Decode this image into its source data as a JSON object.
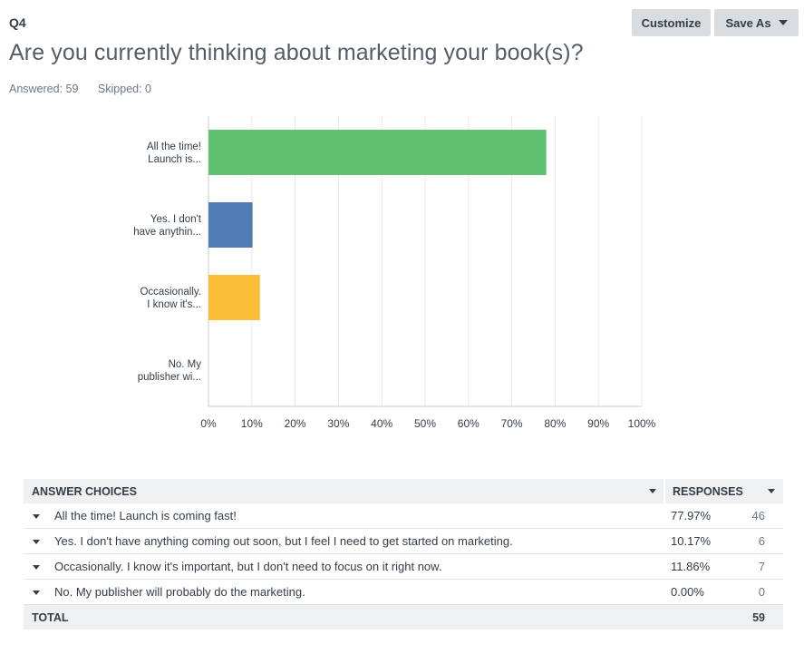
{
  "question": {
    "number": "Q4",
    "title": "Are you currently thinking about marketing your book(s)?",
    "answered": "Answered: 59",
    "skipped": "Skipped: 0"
  },
  "toolbar": {
    "customize_label": "Customize",
    "saveas_label": "Save As"
  },
  "chart_data": {
    "type": "bar",
    "orientation": "horizontal",
    "categories": [
      [
        "All the time!",
        "Launch is..."
      ],
      [
        "Yes. I don't",
        "have anythin..."
      ],
      [
        "Occasionally.",
        "I know it's..."
      ],
      [
        "No. My",
        "publisher wi..."
      ]
    ],
    "values": [
      77.97,
      10.17,
      11.86,
      0.0
    ],
    "colors": [
      "#62c171",
      "#507cb6",
      "#f9be35",
      "#9d8cd1"
    ],
    "xlim": [
      0,
      100
    ],
    "xticks": [
      "0%",
      "10%",
      "20%",
      "30%",
      "40%",
      "50%",
      "60%",
      "70%",
      "80%",
      "90%",
      "100%"
    ],
    "grid": true
  },
  "table": {
    "header_choices": "ANSWER CHOICES",
    "header_responses": "RESPONSES",
    "rows": [
      {
        "label": "All the time! Launch is coming fast!",
        "percent": "77.97%",
        "count": "46"
      },
      {
        "label": "Yes. I don't have anything coming out soon, but I feel I need to get started on marketing.",
        "percent": "10.17%",
        "count": "6"
      },
      {
        "label": "Occasionally. I know it's important, but I don't need to focus on it right now.",
        "percent": "11.86%",
        "count": "7"
      },
      {
        "label": "No. My publisher will probably do the marketing.",
        "percent": "0.00%",
        "count": "0"
      }
    ],
    "total_label": "TOTAL",
    "total_value": "59"
  }
}
